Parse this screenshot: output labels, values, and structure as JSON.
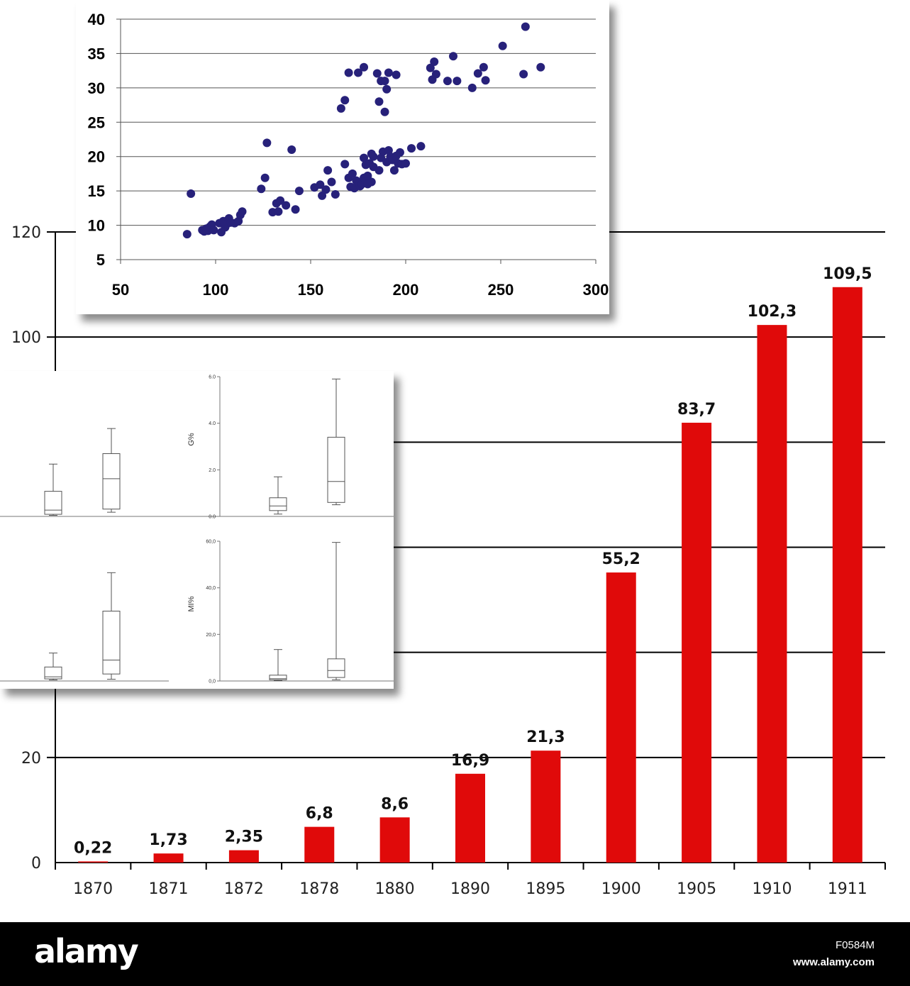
{
  "chart_data": [
    {
      "type": "bar",
      "categories": [
        "1870",
        "1871",
        "1872",
        "1878",
        "1880",
        "1890",
        "1895",
        "1900",
        "1905",
        "1910",
        "1911"
      ],
      "values": [
        0.22,
        1.73,
        2.35,
        6.8,
        8.6,
        16.9,
        21.3,
        55.2,
        83.7,
        102.3,
        109.5
      ],
      "data_labels": [
        "0,22",
        "1,73",
        "2,35",
        "6,8",
        "8,6",
        "16,9",
        "21,3",
        "55,2",
        "83,7",
        "102,3",
        "109,5"
      ],
      "yticks_visible": [
        0,
        20,
        100,
        120
      ],
      "ylim": [
        0,
        120
      ],
      "grid": true,
      "color": "#e00a0a"
    },
    {
      "type": "scatter",
      "xlim": [
        50,
        300
      ],
      "ylim": [
        5,
        40
      ],
      "xticks": [
        50,
        100,
        150,
        200,
        250,
        300
      ],
      "yticks": [
        5,
        10,
        15,
        20,
        25,
        30,
        35,
        40
      ],
      "grid": true,
      "color": "#27217a",
      "points": [
        [
          85,
          8.7
        ],
        [
          87,
          14.6
        ],
        [
          93,
          9.3
        ],
        [
          94,
          9.1
        ],
        [
          95,
          9.5
        ],
        [
          96,
          9.2
        ],
        [
          97,
          9.8
        ],
        [
          98,
          10.1
        ],
        [
          99,
          9.3
        ],
        [
          102,
          10.3
        ],
        [
          103,
          9.0
        ],
        [
          104,
          10.6
        ],
        [
          105,
          9.7
        ],
        [
          106,
          10.2
        ],
        [
          107,
          11.0
        ],
        [
          108,
          10.4
        ],
        [
          110,
          10.3
        ],
        [
          112,
          10.6
        ],
        [
          113,
          11.5
        ],
        [
          114,
          12.0
        ],
        [
          124,
          15.3
        ],
        [
          126,
          16.9
        ],
        [
          127,
          22.0
        ],
        [
          130,
          11.9
        ],
        [
          132,
          13.2
        ],
        [
          133,
          12.0
        ],
        [
          134,
          13.6
        ],
        [
          137,
          12.9
        ],
        [
          140,
          21.0
        ],
        [
          142,
          12.3
        ],
        [
          144,
          15.0
        ],
        [
          152,
          15.5
        ],
        [
          155,
          15.9
        ],
        [
          156,
          14.3
        ],
        [
          158,
          15.2
        ],
        [
          159,
          18.0
        ],
        [
          161,
          16.3
        ],
        [
          163,
          14.5
        ],
        [
          166,
          27.0
        ],
        [
          168,
          28.2
        ],
        [
          168,
          18.9
        ],
        [
          170,
          32.2
        ],
        [
          170,
          16.9
        ],
        [
          171,
          15.6
        ],
        [
          172,
          17.5
        ],
        [
          173,
          15.4
        ],
        [
          174,
          16.5
        ],
        [
          175,
          32.2
        ],
        [
          176,
          15.7
        ],
        [
          177,
          16.0
        ],
        [
          178,
          33.0
        ],
        [
          178,
          16.9
        ],
        [
          178,
          19.8
        ],
        [
          179,
          18.8
        ],
        [
          180,
          16.0
        ],
        [
          180,
          17.2
        ],
        [
          181,
          19.0
        ],
        [
          182,
          16.3
        ],
        [
          182,
          20.4
        ],
        [
          183,
          20.0
        ],
        [
          183,
          18.5
        ],
        [
          185,
          32.1
        ],
        [
          186,
          28.0
        ],
        [
          186,
          18.0
        ],
        [
          187,
          31.0
        ],
        [
          187,
          19.8
        ],
        [
          188,
          20.7
        ],
        [
          189,
          31.0
        ],
        [
          189,
          26.5
        ],
        [
          190,
          29.8
        ],
        [
          190,
          19.2
        ],
        [
          191,
          32.2
        ],
        [
          191,
          20.9
        ],
        [
          192,
          20.0
        ],
        [
          193,
          19.5
        ],
        [
          194,
          18.0
        ],
        [
          195,
          31.9
        ],
        [
          195,
          20.1
        ],
        [
          196,
          19.0
        ],
        [
          197,
          20.6
        ],
        [
          198,
          18.9
        ],
        [
          200,
          19.0
        ],
        [
          203,
          21.2
        ],
        [
          208,
          21.5
        ],
        [
          213,
          32.9
        ],
        [
          214,
          31.2
        ],
        [
          215,
          33.8
        ],
        [
          216,
          32.0
        ],
        [
          222,
          31.0
        ],
        [
          225,
          34.6
        ],
        [
          227,
          31.0
        ],
        [
          235,
          30.0
        ],
        [
          238,
          32.1
        ],
        [
          241,
          33.0
        ],
        [
          242,
          31.1
        ],
        [
          251,
          36.1
        ],
        [
          262,
          32.0
        ],
        [
          263,
          38.9
        ],
        [
          271,
          33.0
        ]
      ]
    },
    {
      "type": "box",
      "panels": [
        {
          "ylabel": "",
          "yticks": [],
          "boxes": [
            {
              "whisker_low": 0.05,
              "q1": 0.1,
              "median": 0.3,
              "q3": 1.2,
              "whisker_high": 2.5
            },
            {
              "whisker_low": 0.2,
              "q1": 0.35,
              "median": 1.8,
              "q3": 3.0,
              "whisker_high": 4.2
            }
          ]
        },
        {
          "ylabel": "G%",
          "ylim": [
            0,
            6
          ],
          "yticks": [
            "0.0",
            "2.0",
            "4.0",
            "6.0"
          ],
          "boxes": [
            {
              "whisker_low": 0.1,
              "q1": 0.25,
              "median": 0.45,
              "q3": 0.8,
              "whisker_high": 1.7
            },
            {
              "whisker_low": 0.5,
              "q1": 0.6,
              "median": 1.5,
              "q3": 3.4,
              "whisker_high": 5.9
            }
          ]
        },
        {
          "ylabel": "",
          "yticks": [],
          "boxes": [
            {
              "whisker_low": 0.3,
              "q1": 0.6,
              "median": 1.2,
              "q3": 4.0,
              "whisker_high": 8.0
            },
            {
              "whisker_low": 0.5,
              "q1": 2.0,
              "median": 6.0,
              "q3": 20.0,
              "whisker_high": 31.0
            }
          ]
        },
        {
          "ylabel": "MI%",
          "ylim": [
            0,
            60
          ],
          "yticks": [
            "0,0",
            "20,0",
            "40,0",
            "60,0"
          ],
          "boxes": [
            {
              "whisker_low": 0.2,
              "q1": 0.5,
              "median": 1.0,
              "q3": 2.5,
              "whisker_high": 13.5
            },
            {
              "whisker_low": 0.5,
              "q1": 1.5,
              "median": 4.5,
              "q3": 9.5,
              "whisker_high": 59.5
            }
          ]
        }
      ]
    }
  ],
  "watermark": {
    "brand": "alamy",
    "image_id": "F0584M",
    "url": "www.alamy.com"
  }
}
